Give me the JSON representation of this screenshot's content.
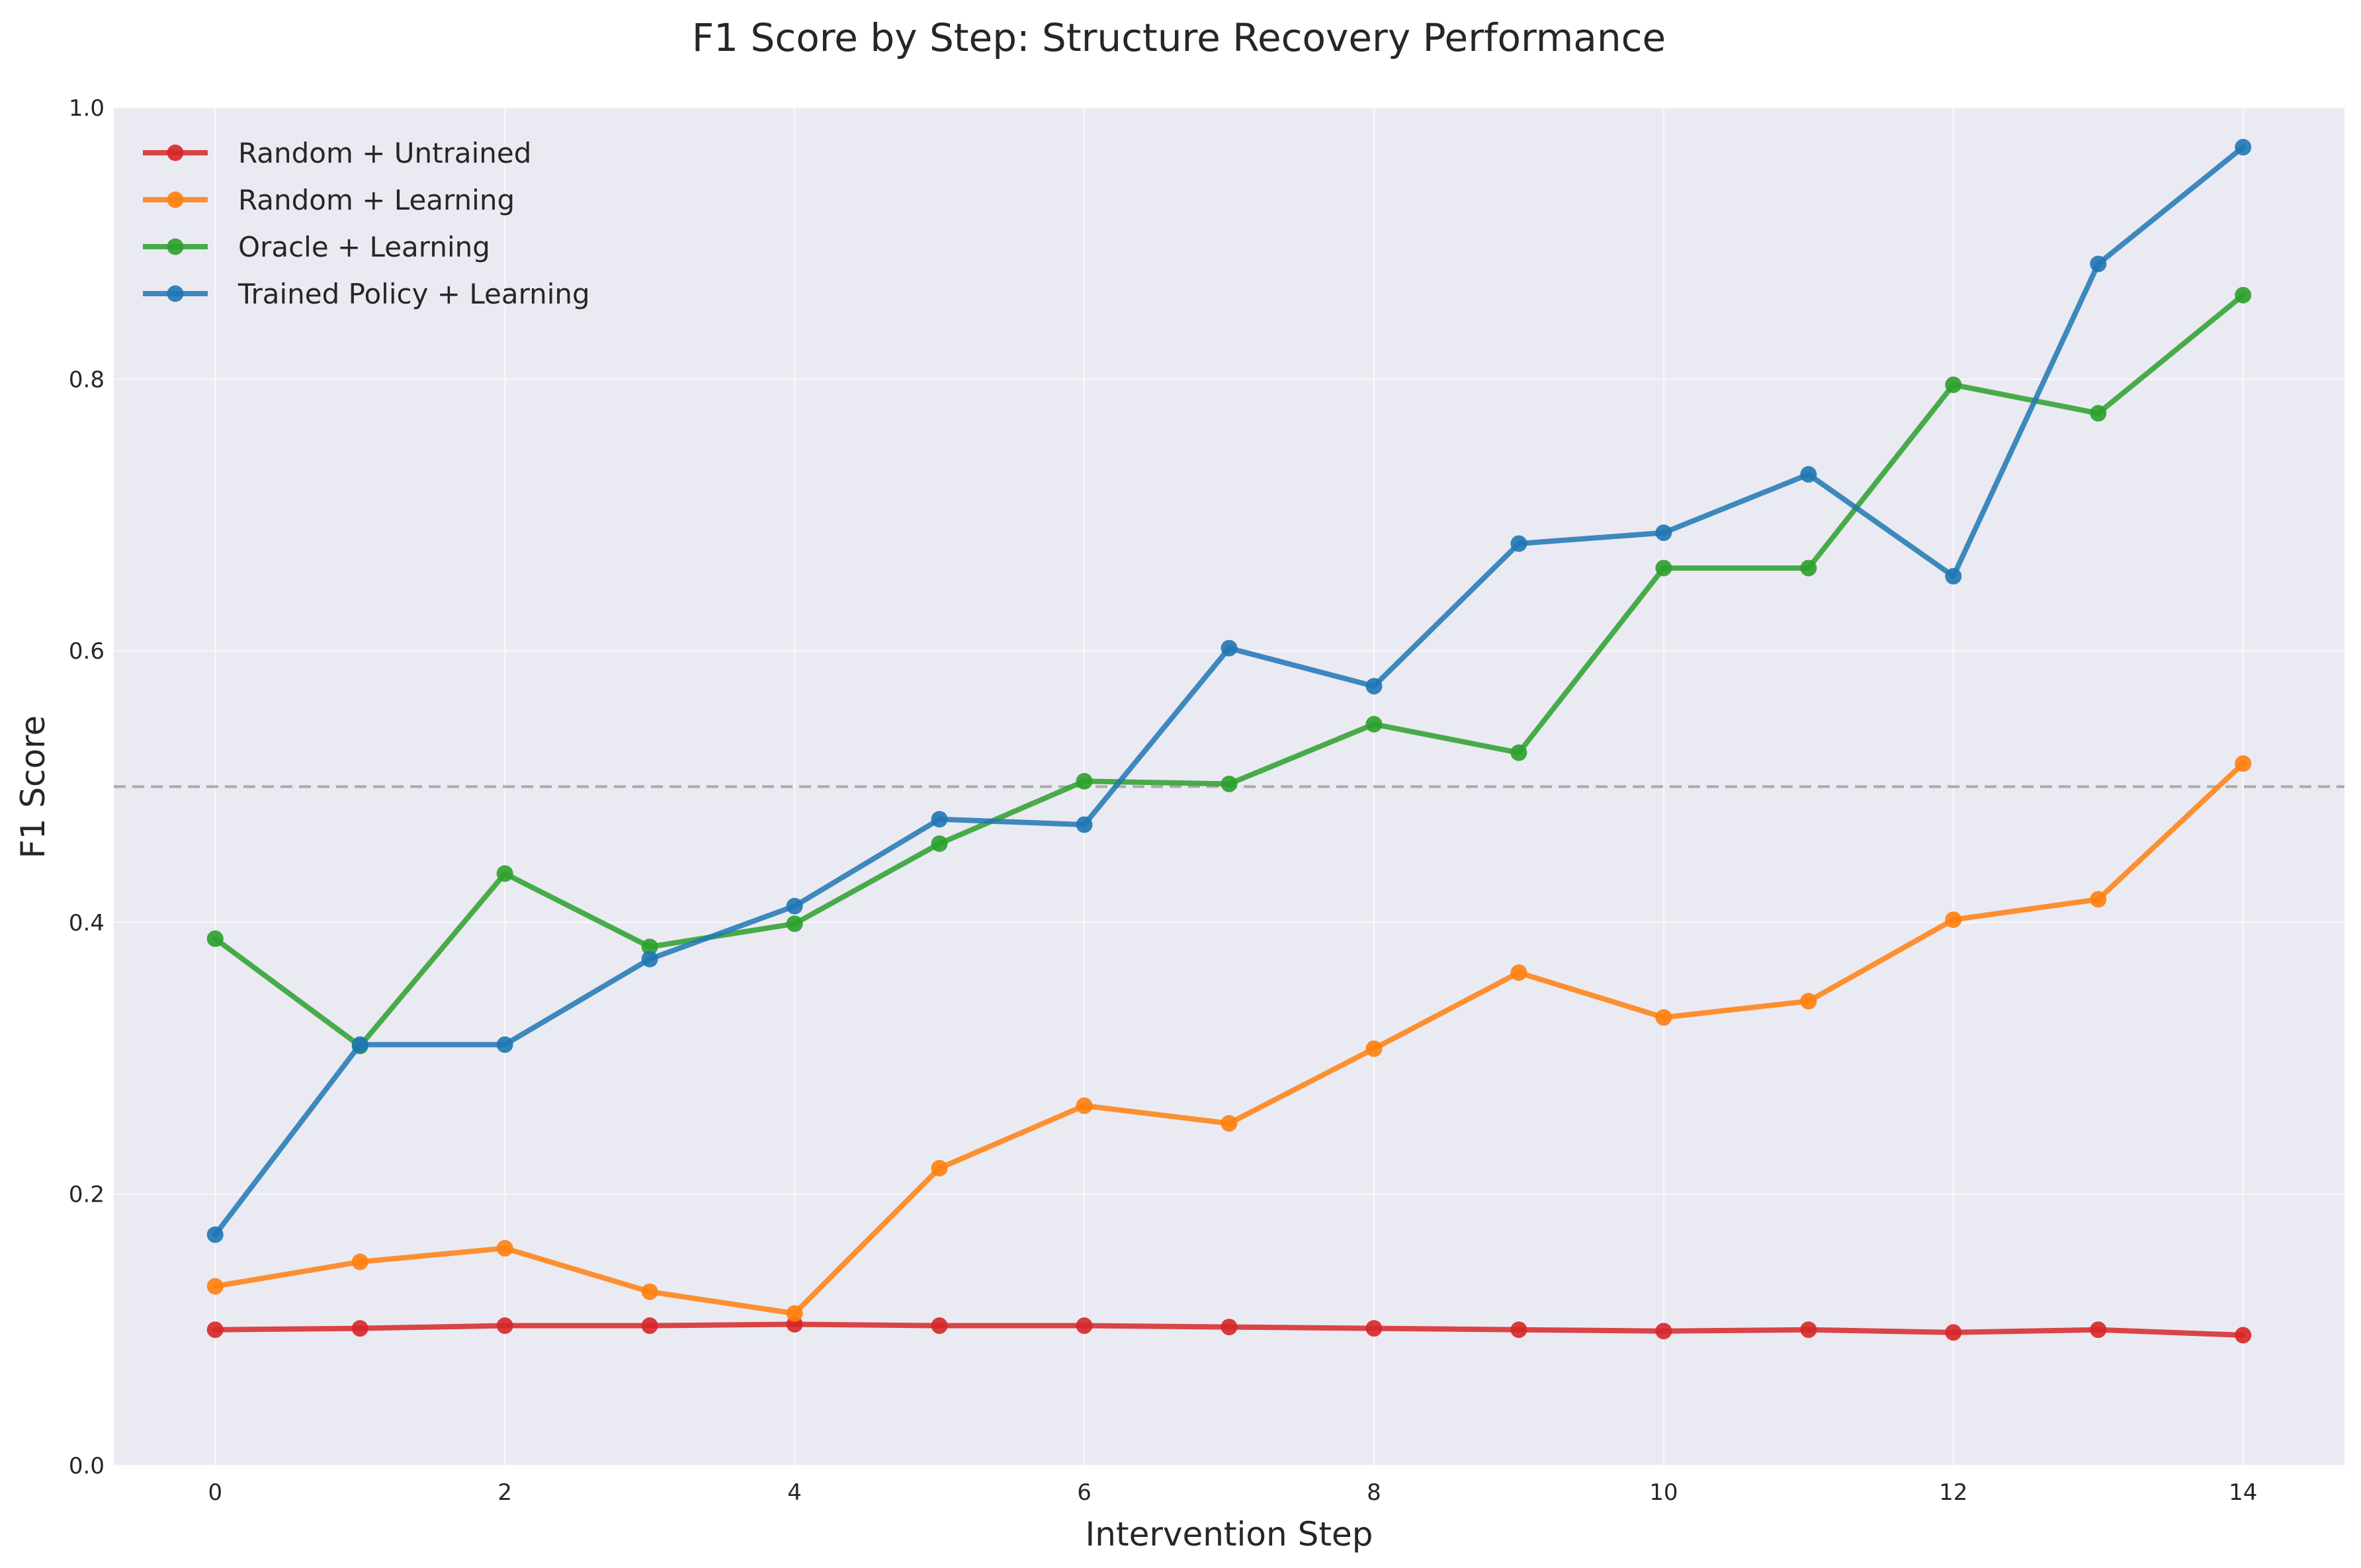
{
  "chart_data": {
    "type": "line",
    "title": "F1 Score by Step: Structure Recovery Performance",
    "xlabel": "Intervention Step",
    "ylabel": "F1 Score",
    "xlim": [
      -0.7,
      14.7
    ],
    "ylim": [
      0,
      1.0
    ],
    "xticks": [
      0,
      2,
      4,
      6,
      8,
      10,
      12,
      14
    ],
    "yticks": [
      0.0,
      0.2,
      0.4,
      0.6,
      0.8,
      1.0
    ],
    "grid": true,
    "legend_position": "top-left",
    "reference_line": {
      "y": 0.5,
      "style": "dashed",
      "color": "#aaaaaa"
    },
    "x": [
      0,
      1,
      2,
      3,
      4,
      5,
      6,
      7,
      8,
      9,
      10,
      11,
      12,
      13,
      14
    ],
    "series": [
      {
        "name": "Random + Untrained",
        "color": "#d62728",
        "values": [
          0.1,
          0.101,
          0.103,
          0.103,
          0.104,
          0.103,
          0.103,
          0.102,
          0.101,
          0.1,
          0.099,
          0.1,
          0.098,
          0.1,
          0.096
        ]
      },
      {
        "name": "Random + Learning",
        "color": "#ff7f0e",
        "values": [
          0.132,
          0.15,
          0.16,
          0.128,
          0.112,
          0.219,
          0.265,
          0.252,
          0.307,
          0.363,
          0.33,
          0.342,
          0.402,
          0.417,
          0.517
        ]
      },
      {
        "name": "Oracle + Learning",
        "color": "#2ca02c",
        "values": [
          0.388,
          0.309,
          0.436,
          0.382,
          0.399,
          0.458,
          0.504,
          0.502,
          0.546,
          0.525,
          0.661,
          0.661,
          0.796,
          0.775,
          0.862
        ]
      },
      {
        "name": "Trained Policy + Learning",
        "color": "#1f77b4",
        "values": [
          0.17,
          0.31,
          0.31,
          0.373,
          0.412,
          0.476,
          0.472,
          0.602,
          0.574,
          0.679,
          0.687,
          0.73,
          0.655,
          0.885,
          0.971
        ]
      }
    ]
  }
}
